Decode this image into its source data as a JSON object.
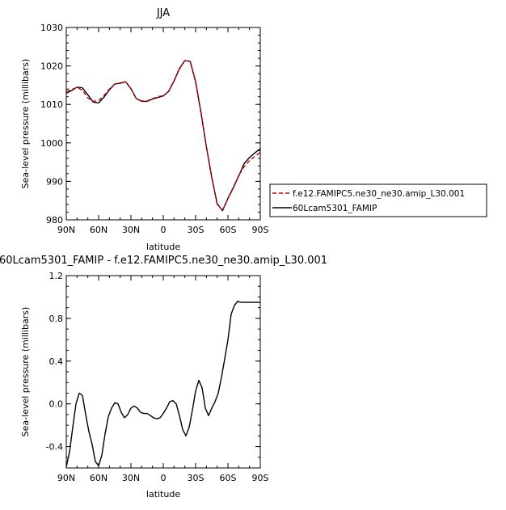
{
  "chart_data": [
    {
      "type": "line",
      "title": "JJA",
      "xlabel": "latitude",
      "ylabel": "Sea-level pressure (millibars)",
      "xlim": [
        90,
        -90
      ],
      "ylim": [
        980,
        1030
      ],
      "xticks": [
        90,
        60,
        30,
        0,
        -30,
        -60,
        -90
      ],
      "xtick_labels": [
        "90N",
        "60N",
        "30N",
        "0",
        "30S",
        "60S",
        "90S"
      ],
      "yticks": [
        980,
        990,
        1000,
        1010,
        1020,
        1030
      ],
      "ytick_labels": [
        "980",
        "990",
        "1000",
        "1010",
        "1020",
        "1030"
      ],
      "legend": "outside-right",
      "series": [
        {
          "name": "f.e12.FAMIPC5.ne30_ne30.amip_L30.001",
          "color": "#cc0000",
          "dash": "dashed",
          "x": [
            90,
            85,
            80,
            75,
            70,
            65,
            60,
            55,
            50,
            45,
            40,
            35,
            30,
            25,
            20,
            15,
            10,
            5,
            0,
            -5,
            -10,
            -15,
            -20,
            -25,
            -30,
            -35,
            -40,
            -45,
            -50,
            -55,
            -60,
            -65,
            -70,
            -75,
            -80,
            -85,
            -90
          ],
          "y": [
            1013.4,
            1013.9,
            1014.4,
            1013.7,
            1011.7,
            1010.8,
            1011.0,
            1012.3,
            1014.0,
            1015.3,
            1015.6,
            1015.9,
            1014.1,
            1011.5,
            1010.9,
            1010.9,
            1011.5,
            1012.0,
            1012.3,
            1013.4,
            1016.2,
            1019.4,
            1021.4,
            1021.2,
            1016.0,
            1008.0,
            999.0,
            991.0,
            984.0,
            982.5,
            985.5,
            988.5,
            991.5,
            993.8,
            995.4,
            996.5,
            997.5
          ]
        },
        {
          "name": "60Lcam5301_FAMIP",
          "color": "#000000",
          "dash": "solid",
          "x": [
            90,
            85,
            80,
            75,
            70,
            65,
            60,
            55,
            50,
            45,
            40,
            35,
            30,
            25,
            20,
            15,
            10,
            5,
            0,
            -5,
            -10,
            -15,
            -20,
            -25,
            -30,
            -35,
            -40,
            -45,
            -50,
            -55,
            -60,
            -65,
            -70,
            -75,
            -80,
            -85,
            -90
          ],
          "y": [
            1012.9,
            1013.6,
            1014.5,
            1014.3,
            1012.5,
            1010.6,
            1010.4,
            1011.9,
            1013.8,
            1015.3,
            1015.5,
            1015.9,
            1014.1,
            1011.5,
            1010.8,
            1010.8,
            1011.4,
            1011.8,
            1012.2,
            1013.4,
            1016.1,
            1019.3,
            1021.4,
            1021.2,
            1015.9,
            1007.8,
            999.0,
            991.0,
            984.2,
            982.4,
            985.6,
            988.3,
            991.4,
            994.6,
            996.2,
            997.4,
            998.5
          ]
        }
      ]
    },
    {
      "type": "line",
      "title": "60Lcam5301_FAMIP - f.e12.FAMIPC5.ne30_ne30.amip_L30.001",
      "xlabel": "latitude",
      "ylabel": "Sea-level pressure (millibars)",
      "xlim": [
        90,
        -90
      ],
      "ylim": [
        -0.6,
        1.2
      ],
      "xticks": [
        90,
        60,
        30,
        0,
        -30,
        -60,
        -90
      ],
      "xtick_labels": [
        "90N",
        "60N",
        "30N",
        "0",
        "30S",
        "60S",
        "90S"
      ],
      "yticks": [
        -0.4,
        0.0,
        0.4,
        0.8,
        1.2
      ],
      "ytick_labels": [
        "-0.4",
        "0.0",
        "0.4",
        "0.8",
        "1.2"
      ],
      "series": [
        {
          "name": "",
          "color": "#000000",
          "dash": "solid",
          "x": [
            90,
            87,
            84,
            81,
            78,
            75,
            72,
            69,
            66,
            63,
            60,
            57,
            54,
            51,
            48,
            45,
            42,
            39,
            36,
            33,
            30,
            27,
            24,
            21,
            18,
            15,
            12,
            9,
            6,
            3,
            0,
            -3,
            -6,
            -9,
            -12,
            -15,
            -18,
            -21,
            -24,
            -27,
            -30,
            -33,
            -36,
            -39,
            -42,
            -45,
            -48,
            -51,
            -54,
            -57,
            -60,
            -63,
            -66,
            -69,
            -72,
            -75,
            -78,
            -81,
            -84,
            -87,
            -90
          ],
          "y": [
            -0.59,
            -0.45,
            -0.22,
            0.0,
            0.1,
            0.08,
            -0.1,
            -0.26,
            -0.38,
            -0.54,
            -0.58,
            -0.48,
            -0.28,
            -0.12,
            -0.04,
            0.01,
            0.0,
            -0.08,
            -0.13,
            -0.1,
            -0.04,
            -0.02,
            -0.04,
            -0.08,
            -0.09,
            -0.09,
            -0.11,
            -0.13,
            -0.14,
            -0.13,
            -0.09,
            -0.04,
            0.02,
            0.03,
            0.0,
            -0.11,
            -0.24,
            -0.3,
            -0.22,
            -0.06,
            0.12,
            0.22,
            0.15,
            -0.04,
            -0.11,
            -0.04,
            0.02,
            0.1,
            0.25,
            0.42,
            0.6,
            0.84,
            0.92,
            0.96,
            0.95,
            0.95,
            0.95,
            0.95,
            0.95,
            0.95,
            0.95
          ]
        }
      ]
    }
  ]
}
